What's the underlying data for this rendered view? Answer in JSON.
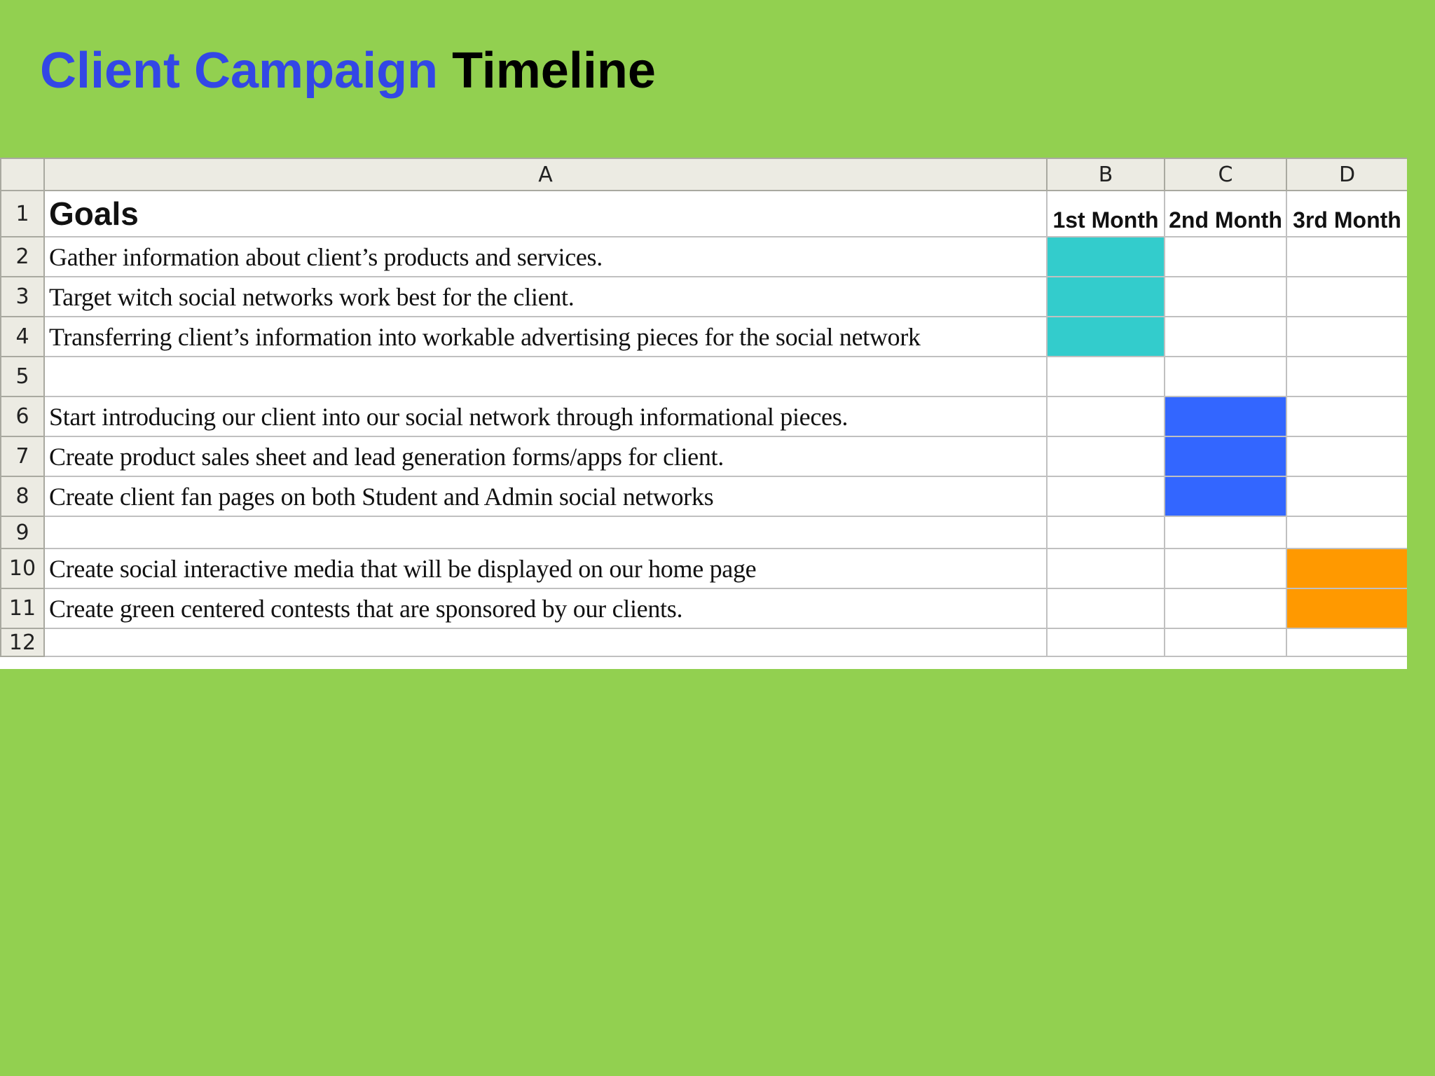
{
  "title": {
    "part1": "Client Campaign",
    "part2": "Timeline",
    "part1_color": "#3347e6",
    "part2_color": "#000000"
  },
  "background_color": "#92d050",
  "spreadsheet": {
    "column_headers": [
      "A",
      "B",
      "C",
      "D"
    ],
    "header_row": {
      "number": "1",
      "goals_label": "Goals",
      "months": [
        "1st Month",
        "2nd Month",
        "3rd Month"
      ]
    },
    "rows": [
      {
        "number": "2",
        "text": "Gather information about client’s products and services.",
        "fill": "B"
      },
      {
        "number": "3",
        "text": "Target witch social networks work best for the client.",
        "fill": "B"
      },
      {
        "number": "4",
        "text": "Transferring client’s information into workable advertising pieces for the social network",
        "fill": "B"
      },
      {
        "number": "5",
        "text": "",
        "fill": ""
      },
      {
        "number": "6",
        "text": "Start introducing our client into our social network through informational pieces.",
        "fill": "C"
      },
      {
        "number": "7",
        "text": "Create product sales sheet and lead generation forms/apps for client.",
        "fill": "C"
      },
      {
        "number": "8",
        "text": "Create client fan pages on both Student and Admin social networks",
        "fill": "C"
      },
      {
        "number": "9",
        "text": "",
        "fill": ""
      },
      {
        "number": "10",
        "text": "Create social interactive media that will be displayed on our home page",
        "fill": "D"
      },
      {
        "number": "11",
        "text": "Create green centered contests that are sponsored by our clients.",
        "fill": "D"
      },
      {
        "number": "12",
        "text": "",
        "fill": ""
      }
    ],
    "fill_colors": {
      "month1": "#33cccc",
      "month2": "#3366ff",
      "month3": "#ff9900"
    }
  }
}
